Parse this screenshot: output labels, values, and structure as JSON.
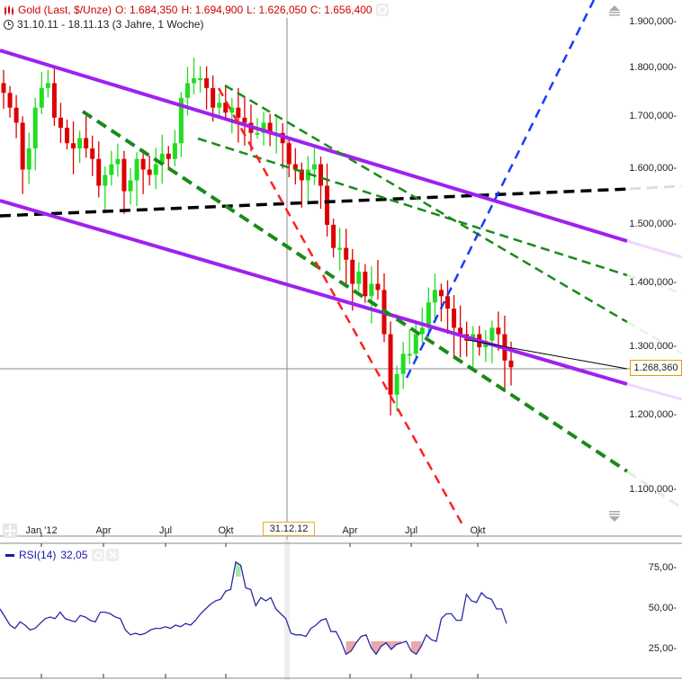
{
  "header": {
    "instrument_icon": "candlestick-icon",
    "title": "Gold (Last, $/Unze)",
    "open": "O: 1.684,350",
    "high": "H: 1.694,900",
    "low": "L: 1.626,050",
    "close": "C: 1.656,400",
    "settings_icon": "gear-icon",
    "range_icon": "clock-icon",
    "range": "31.10.11 - 18.11.13 (3 Jahre, 1 Woche)"
  },
  "price_axis": {
    "ticks": [
      {
        "label": "1.900,000",
        "y": 25
      },
      {
        "label": "1.800,000",
        "y": 76
      },
      {
        "label": "1.700,000",
        "y": 130
      },
      {
        "label": "1.600,000",
        "y": 188
      },
      {
        "label": "1.500,000",
        "y": 250
      },
      {
        "label": "1.400,000",
        "y": 315
      },
      {
        "label": "1.300,000",
        "y": 386
      },
      {
        "label": "1.200,000",
        "y": 462
      },
      {
        "label": "1.100,000",
        "y": 545
      }
    ],
    "current_price": "1.268,360",
    "scroll_up_icon": "scroll-up-icon",
    "scroll_down_icon": "scroll-down-icon"
  },
  "time_axis": {
    "ticks": [
      {
        "label": "Jan '12",
        "x": 46
      },
      {
        "label": "Apr",
        "x": 115
      },
      {
        "label": "Jul",
        "x": 184
      },
      {
        "label": "Okt",
        "x": 251
      },
      {
        "label": "Apr",
        "x": 389
      },
      {
        "label": "Jul",
        "x": 457
      },
      {
        "label": "Okt",
        "x": 531
      }
    ],
    "crosshair_date": "31.12.12",
    "pan_icon": "move-icon"
  },
  "rsi": {
    "label": "RSI(14)",
    "value": "32,05",
    "settings_icon": "gear-icon",
    "close_icon": "close-icon",
    "ticks": [
      {
        "label": "75,00",
        "y": 632
      },
      {
        "label": "50,00",
        "y": 677
      },
      {
        "label": "25,00",
        "y": 722
      }
    ]
  },
  "colors": {
    "up": "#22dd22",
    "down": "#dd0000",
    "channel": "#a020f0",
    "support": "#000000",
    "trend_green": "#1a8a1a",
    "trend_red": "#ff2020",
    "trend_blue": "#1a3aff",
    "rsi_line": "#2a2aa8",
    "rsi_overbought_fill": "#a8e8a8",
    "rsi_oversold_fill": "#e8a8a8"
  },
  "chart_data": [
    {
      "type": "candlestick",
      "title": "Gold (Last, $/Unze)",
      "subtitle": "31.10.11 - 18.11.13 (3 Jahre, 1 Woche), weekly",
      "xlabel": "",
      "ylabel": "",
      "y_scale": "log",
      "ylim": [
        1060,
        1960
      ],
      "x_ticks": [
        "Jan '12",
        "Apr",
        "Jul",
        "Okt",
        "Apr",
        "Jul",
        "Okt"
      ],
      "y_ticks": [
        1900,
        1800,
        1700,
        1600,
        1500,
        1400,
        1300,
        1200,
        1100
      ],
      "last_ohlc": {
        "open": 1684.35,
        "high": 1694.9,
        "low": 1626.05,
        "close": 1656.4
      },
      "current_price": 1268.36,
      "approx_closes": [
        1750,
        1720,
        1690,
        1600,
        1640,
        1720,
        1760,
        1770,
        1700,
        1680,
        1650,
        1640,
        1660,
        1640,
        1620,
        1570,
        1590,
        1610,
        1620,
        1560,
        1580,
        1620,
        1600,
        1590,
        1610,
        1630,
        1620,
        1650,
        1740,
        1770,
        1780,
        1780,
        1760,
        1720,
        1730,
        1710,
        1720,
        1700,
        1690,
        1670,
        1670,
        1690,
        1670,
        1670,
        1650,
        1610,
        1600,
        1580,
        1600,
        1610,
        1570,
        1500,
        1460,
        1460,
        1440,
        1400,
        1420,
        1380,
        1400,
        1390,
        1320,
        1230,
        1260,
        1290,
        1290,
        1320,
        1330,
        1370,
        1390,
        1380,
        1360,
        1330,
        1320,
        1310,
        1320,
        1300,
        1310,
        1330,
        1320,
        1280,
        1270
      ],
      "annotations": [
        "Purple descending channel (upper & lower)",
        "Black dashed horizontal support ~1.540",
        "Green dashed trendlines",
        "Red dashed steep trendline",
        "Blue dashed uptrend line",
        "Crosshair at 31.12.12"
      ]
    },
    {
      "type": "line",
      "title": "RSI(14)",
      "current_value": 32.05,
      "ylim": [
        10,
        95
      ],
      "y_ticks": [
        75,
        50,
        25
      ],
      "overbought": 70,
      "oversold": 30,
      "values": [
        50,
        45,
        40,
        38,
        42,
        40,
        37,
        38,
        41,
        44,
        45,
        44,
        48,
        44,
        43,
        42,
        46,
        45,
        43,
        42,
        48,
        48,
        47,
        45,
        44,
        37,
        34,
        35,
        34,
        35,
        37,
        38,
        38,
        39,
        38,
        40,
        39,
        41,
        40,
        43,
        47,
        50,
        53,
        55,
        56,
        61,
        62,
        79,
        77,
        63,
        62,
        52,
        57,
        55,
        57,
        50,
        47,
        44,
        35,
        34,
        34,
        33,
        38,
        40,
        43,
        44,
        36,
        36,
        30,
        22,
        24,
        29,
        33,
        34,
        26,
        22,
        27,
        29,
        25,
        28,
        29,
        30,
        24,
        22,
        27,
        34,
        31,
        30,
        44,
        47,
        47,
        43,
        43,
        59,
        55,
        54,
        60,
        57,
        56,
        50,
        50,
        41
      ]
    }
  ]
}
